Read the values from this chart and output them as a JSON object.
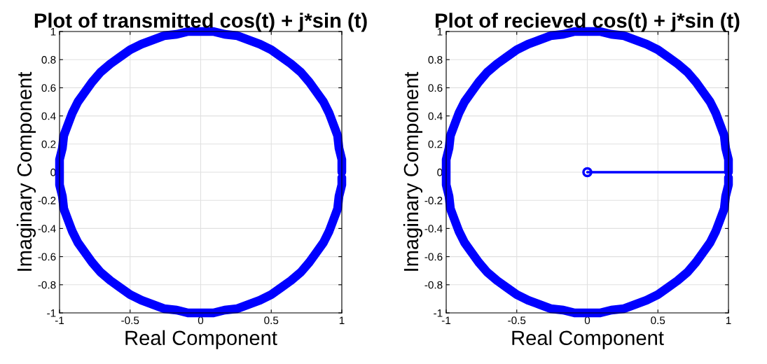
{
  "chart_data": [
    {
      "type": "line",
      "title": "Plot of transmitted cos(t) + j*sin (t)",
      "xlabel": "Real Component",
      "ylabel": "Imaginary Component",
      "xlim": [
        -1,
        1
      ],
      "ylim": [
        -1,
        1
      ],
      "xticks": [
        -1,
        -0.5,
        0,
        0.5,
        1
      ],
      "yticks": [
        -1,
        -0.8,
        -0.6,
        -0.4,
        -0.2,
        0,
        0.2,
        0.4,
        0.6,
        0.8,
        1
      ],
      "grid": true,
      "series": [
        {
          "color": "#0000ff",
          "marker": "none",
          "x": [
            1,
            1,
            0.98,
            0.97,
            0.94,
            0.91,
            0.87,
            0.82,
            0.77,
            0.71,
            0.64,
            0.57,
            0.5,
            0.42,
            0.34,
            0.26,
            0.17,
            0.09,
            0,
            -0.09,
            -0.17,
            -0.26,
            -0.34,
            -0.42,
            -0.5,
            -0.57,
            -0.64,
            -0.71,
            -0.77,
            -0.82,
            -0.87,
            -0.91,
            -0.94,
            -0.97,
            -0.98,
            -1,
            -1,
            -1,
            -0.98,
            -0.97,
            -0.94,
            -0.91,
            -0.87,
            -0.82,
            -0.77,
            -0.71,
            -0.64,
            -0.57,
            -0.5,
            -0.42,
            -0.34,
            -0.26,
            -0.17,
            -0.09,
            0,
            0.09,
            0.17,
            0.26,
            0.34,
            0.42,
            0.5,
            0.57,
            0.64,
            0.71,
            0.77,
            0.82,
            0.87,
            0.91,
            0.94,
            0.97,
            0.98,
            1,
            1
          ],
          "values": [
            0,
            0.09,
            0.17,
            0.26,
            0.34,
            0.42,
            0.5,
            0.57,
            0.64,
            0.71,
            0.77,
            0.82,
            0.87,
            0.91,
            0.94,
            0.97,
            0.98,
            1,
            1,
            1,
            0.98,
            0.97,
            0.94,
            0.91,
            0.87,
            0.82,
            0.77,
            0.71,
            0.64,
            0.57,
            0.5,
            0.42,
            0.34,
            0.26,
            0.17,
            0.09,
            0,
            -0.09,
            -0.17,
            -0.26,
            -0.34,
            -0.42,
            -0.5,
            -0.57,
            -0.64,
            -0.71,
            -0.77,
            -0.82,
            -0.87,
            -0.91,
            -0.94,
            -0.97,
            -0.98,
            -1,
            -1,
            -1,
            -0.98,
            -0.97,
            -0.94,
            -0.91,
            -0.87,
            -0.82,
            -0.77,
            -0.71,
            -0.64,
            -0.57,
            -0.5,
            -0.42,
            -0.34,
            -0.26,
            -0.17,
            -0.09,
            -0.04
          ]
        }
      ]
    },
    {
      "type": "line",
      "title": "Plot of recieved cos(t) + j*sin (t)",
      "xlabel": "Real Component",
      "ylabel": "Imaginary Component",
      "xlim": [
        -1,
        1
      ],
      "ylim": [
        -1,
        1
      ],
      "xticks": [
        -1,
        -0.5,
        0,
        0.5,
        1
      ],
      "yticks": [
        -1,
        -0.8,
        -0.6,
        -0.4,
        -0.2,
        0,
        0.2,
        0.4,
        0.6,
        0.8,
        1
      ],
      "grid": true,
      "series": [
        {
          "color": "#0000ff",
          "marker": "none",
          "x": [
            1,
            1,
            0.98,
            0.97,
            0.94,
            0.91,
            0.87,
            0.82,
            0.77,
            0.71,
            0.64,
            0.57,
            0.5,
            0.42,
            0.34,
            0.26,
            0.17,
            0.09,
            0,
            -0.09,
            -0.17,
            -0.26,
            -0.34,
            -0.42,
            -0.5,
            -0.57,
            -0.64,
            -0.71,
            -0.77,
            -0.82,
            -0.87,
            -0.91,
            -0.94,
            -0.97,
            -0.98,
            -1,
            -1,
            -1,
            -0.98,
            -0.97,
            -0.94,
            -0.91,
            -0.87,
            -0.82,
            -0.77,
            -0.71,
            -0.64,
            -0.57,
            -0.5,
            -0.42,
            -0.34,
            -0.26,
            -0.17,
            -0.09,
            0,
            0.09,
            0.17,
            0.26,
            0.34,
            0.42,
            0.5,
            0.57,
            0.64,
            0.71,
            0.77,
            0.82,
            0.87,
            0.91,
            0.94,
            0.97,
            0.98,
            1,
            1
          ],
          "values": [
            0,
            0.09,
            0.17,
            0.26,
            0.34,
            0.42,
            0.5,
            0.57,
            0.64,
            0.71,
            0.77,
            0.82,
            0.87,
            0.91,
            0.94,
            0.97,
            0.98,
            1,
            1,
            1,
            0.98,
            0.97,
            0.94,
            0.91,
            0.87,
            0.82,
            0.77,
            0.71,
            0.64,
            0.57,
            0.5,
            0.42,
            0.34,
            0.26,
            0.17,
            0.09,
            0,
            -0.09,
            -0.17,
            -0.26,
            -0.34,
            -0.42,
            -0.5,
            -0.57,
            -0.64,
            -0.71,
            -0.77,
            -0.82,
            -0.87,
            -0.91,
            -0.94,
            -0.97,
            -0.98,
            -1,
            -1,
            -1,
            -0.98,
            -0.97,
            -0.94,
            -0.91,
            -0.87,
            -0.82,
            -0.77,
            -0.71,
            -0.64,
            -0.57,
            -0.5,
            -0.42,
            -0.34,
            -0.26,
            -0.17,
            -0.09,
            -0.04
          ]
        },
        {
          "color": "#0000ff",
          "marker": "none",
          "x": [
            0,
            0.97
          ],
          "values": [
            0,
            0
          ]
        },
        {
          "type": "scatter",
          "color": "#0000ff",
          "marker": "circle",
          "x": [
            0
          ],
          "values": [
            0
          ]
        }
      ]
    }
  ]
}
